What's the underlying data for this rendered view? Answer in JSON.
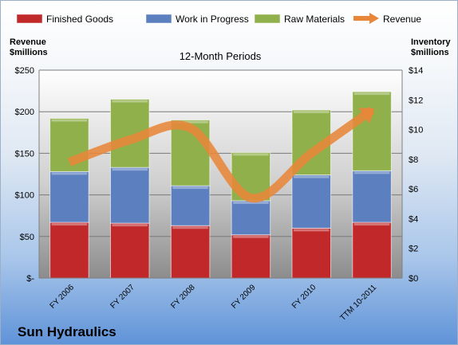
{
  "chart_data": {
    "type": "bar",
    "stacked": true,
    "title": "12-Month Periods",
    "categories": [
      "FY 2006",
      "FY 2007",
      "FY 2008",
      "FY 2009",
      "FY 2010",
      "TTM 10-2011"
    ],
    "series": [
      {
        "name": "Finished Goods",
        "values": [
          67,
          66,
          63,
          52,
          60,
          67
        ],
        "color": "#c0282a"
      },
      {
        "name": "Work in Progress",
        "values": [
          61,
          67,
          48,
          41,
          64,
          62
        ],
        "color": "#5b7fbf"
      },
      {
        "name": "Raw Materials",
        "values": [
          64,
          82,
          79,
          58,
          78,
          95
        ],
        "color": "#8fb04a"
      }
    ],
    "line_series": {
      "name": "Revenue",
      "axis": "right",
      "values": [
        7.8,
        9.3,
        10.1,
        5.4,
        8.4,
        11.3
      ],
      "color": "#e8863a"
    },
    "left_axis": {
      "label": "Revenue\n$millions",
      "range": [
        0,
        250
      ],
      "ticks": [
        "$-",
        "$50",
        "$100",
        "$150",
        "$200",
        "$250"
      ]
    },
    "right_axis": {
      "label": "Inventory\n$millions",
      "range": [
        0,
        14
      ],
      "ticks": [
        "$0",
        "$2",
        "$4",
        "$6",
        "$8",
        "$10",
        "$12",
        "$14"
      ]
    },
    "legend": [
      "Finished Goods",
      "Work in Progress",
      "Raw Materials",
      "Revenue"
    ],
    "legend_position": "top",
    "grid": true
  },
  "company": "Sun Hydraulics"
}
